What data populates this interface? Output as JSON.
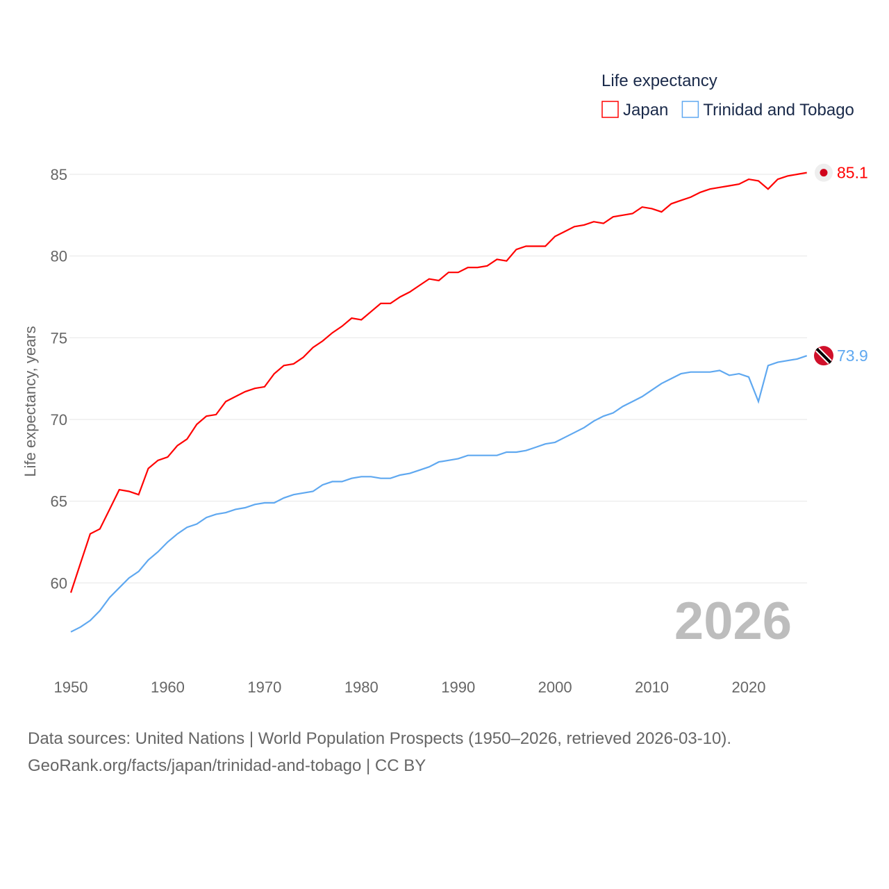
{
  "chart_data": {
    "type": "line",
    "title": "Life expectancy",
    "ylabel": "Life expectancy, years",
    "xlabel": "",
    "ylim": [
      55.5,
      86.5
    ],
    "xlim": [
      1950,
      2026
    ],
    "yticks": [
      60,
      65,
      70,
      75,
      80,
      85
    ],
    "xticks": [
      1950,
      1960,
      1970,
      1980,
      1990,
      2000,
      2010,
      2020
    ],
    "grid": true,
    "legend_placement": "top-right",
    "year_label": "2026",
    "x": [
      1950,
      1951,
      1952,
      1953,
      1954,
      1955,
      1956,
      1957,
      1958,
      1959,
      1960,
      1961,
      1962,
      1963,
      1964,
      1965,
      1966,
      1967,
      1968,
      1969,
      1970,
      1971,
      1972,
      1973,
      1974,
      1975,
      1976,
      1977,
      1978,
      1979,
      1980,
      1981,
      1982,
      1983,
      1984,
      1985,
      1986,
      1987,
      1988,
      1989,
      1990,
      1991,
      1992,
      1993,
      1994,
      1995,
      1996,
      1997,
      1998,
      1999,
      2000,
      2001,
      2002,
      2003,
      2004,
      2005,
      2006,
      2007,
      2008,
      2009,
      2010,
      2011,
      2012,
      2013,
      2014,
      2015,
      2016,
      2017,
      2018,
      2019,
      2020,
      2021,
      2022,
      2023,
      2024,
      2025,
      2026
    ],
    "series": [
      {
        "name": "Japan",
        "color": "#ff0000",
        "end_label": "85.1",
        "values": [
          59.4,
          61.2,
          63.0,
          63.3,
          64.5,
          65.7,
          65.6,
          65.4,
          67.0,
          67.5,
          67.7,
          68.4,
          68.8,
          69.7,
          70.2,
          70.3,
          71.1,
          71.4,
          71.7,
          71.9,
          72.0,
          72.8,
          73.3,
          73.4,
          73.8,
          74.4,
          74.8,
          75.3,
          75.7,
          76.2,
          76.1,
          76.6,
          77.1,
          77.1,
          77.5,
          77.8,
          78.2,
          78.6,
          78.5,
          79.0,
          79.0,
          79.3,
          79.3,
          79.4,
          79.8,
          79.7,
          80.4,
          80.6,
          80.6,
          80.6,
          81.2,
          81.5,
          81.8,
          81.9,
          82.1,
          82.0,
          82.4,
          82.5,
          82.6,
          83.0,
          82.9,
          82.7,
          83.2,
          83.4,
          83.6,
          83.9,
          84.1,
          84.2,
          84.3,
          84.4,
          84.7,
          84.6,
          84.1,
          84.7,
          84.9,
          85.0,
          85.1
        ]
      },
      {
        "name": "Trinidad and Tobago",
        "color": "#5fa8f0",
        "end_label": "73.9",
        "values": [
          57.0,
          57.3,
          57.7,
          58.3,
          59.1,
          59.7,
          60.3,
          60.7,
          61.4,
          61.9,
          62.5,
          63.0,
          63.4,
          63.6,
          64.0,
          64.2,
          64.3,
          64.5,
          64.6,
          64.8,
          64.9,
          64.9,
          65.2,
          65.4,
          65.5,
          65.6,
          66.0,
          66.2,
          66.2,
          66.4,
          66.5,
          66.5,
          66.4,
          66.4,
          66.6,
          66.7,
          66.9,
          67.1,
          67.4,
          67.5,
          67.6,
          67.8,
          67.8,
          67.8,
          67.8,
          68.0,
          68.0,
          68.1,
          68.3,
          68.5,
          68.6,
          68.9,
          69.2,
          69.5,
          69.9,
          70.2,
          70.4,
          70.8,
          71.1,
          71.4,
          71.8,
          72.2,
          72.5,
          72.8,
          72.9,
          72.9,
          72.9,
          73.0,
          72.7,
          72.8,
          72.6,
          71.1,
          73.3,
          73.5,
          73.6,
          73.7,
          73.9
        ]
      }
    ]
  },
  "source": {
    "line1": "Data sources: United Nations | World Population Prospects (1950–2026, retrieved 2026-03-10).",
    "line2": "GeoRank.org/facts/japan/trinidad-and-tobago | CC BY"
  }
}
